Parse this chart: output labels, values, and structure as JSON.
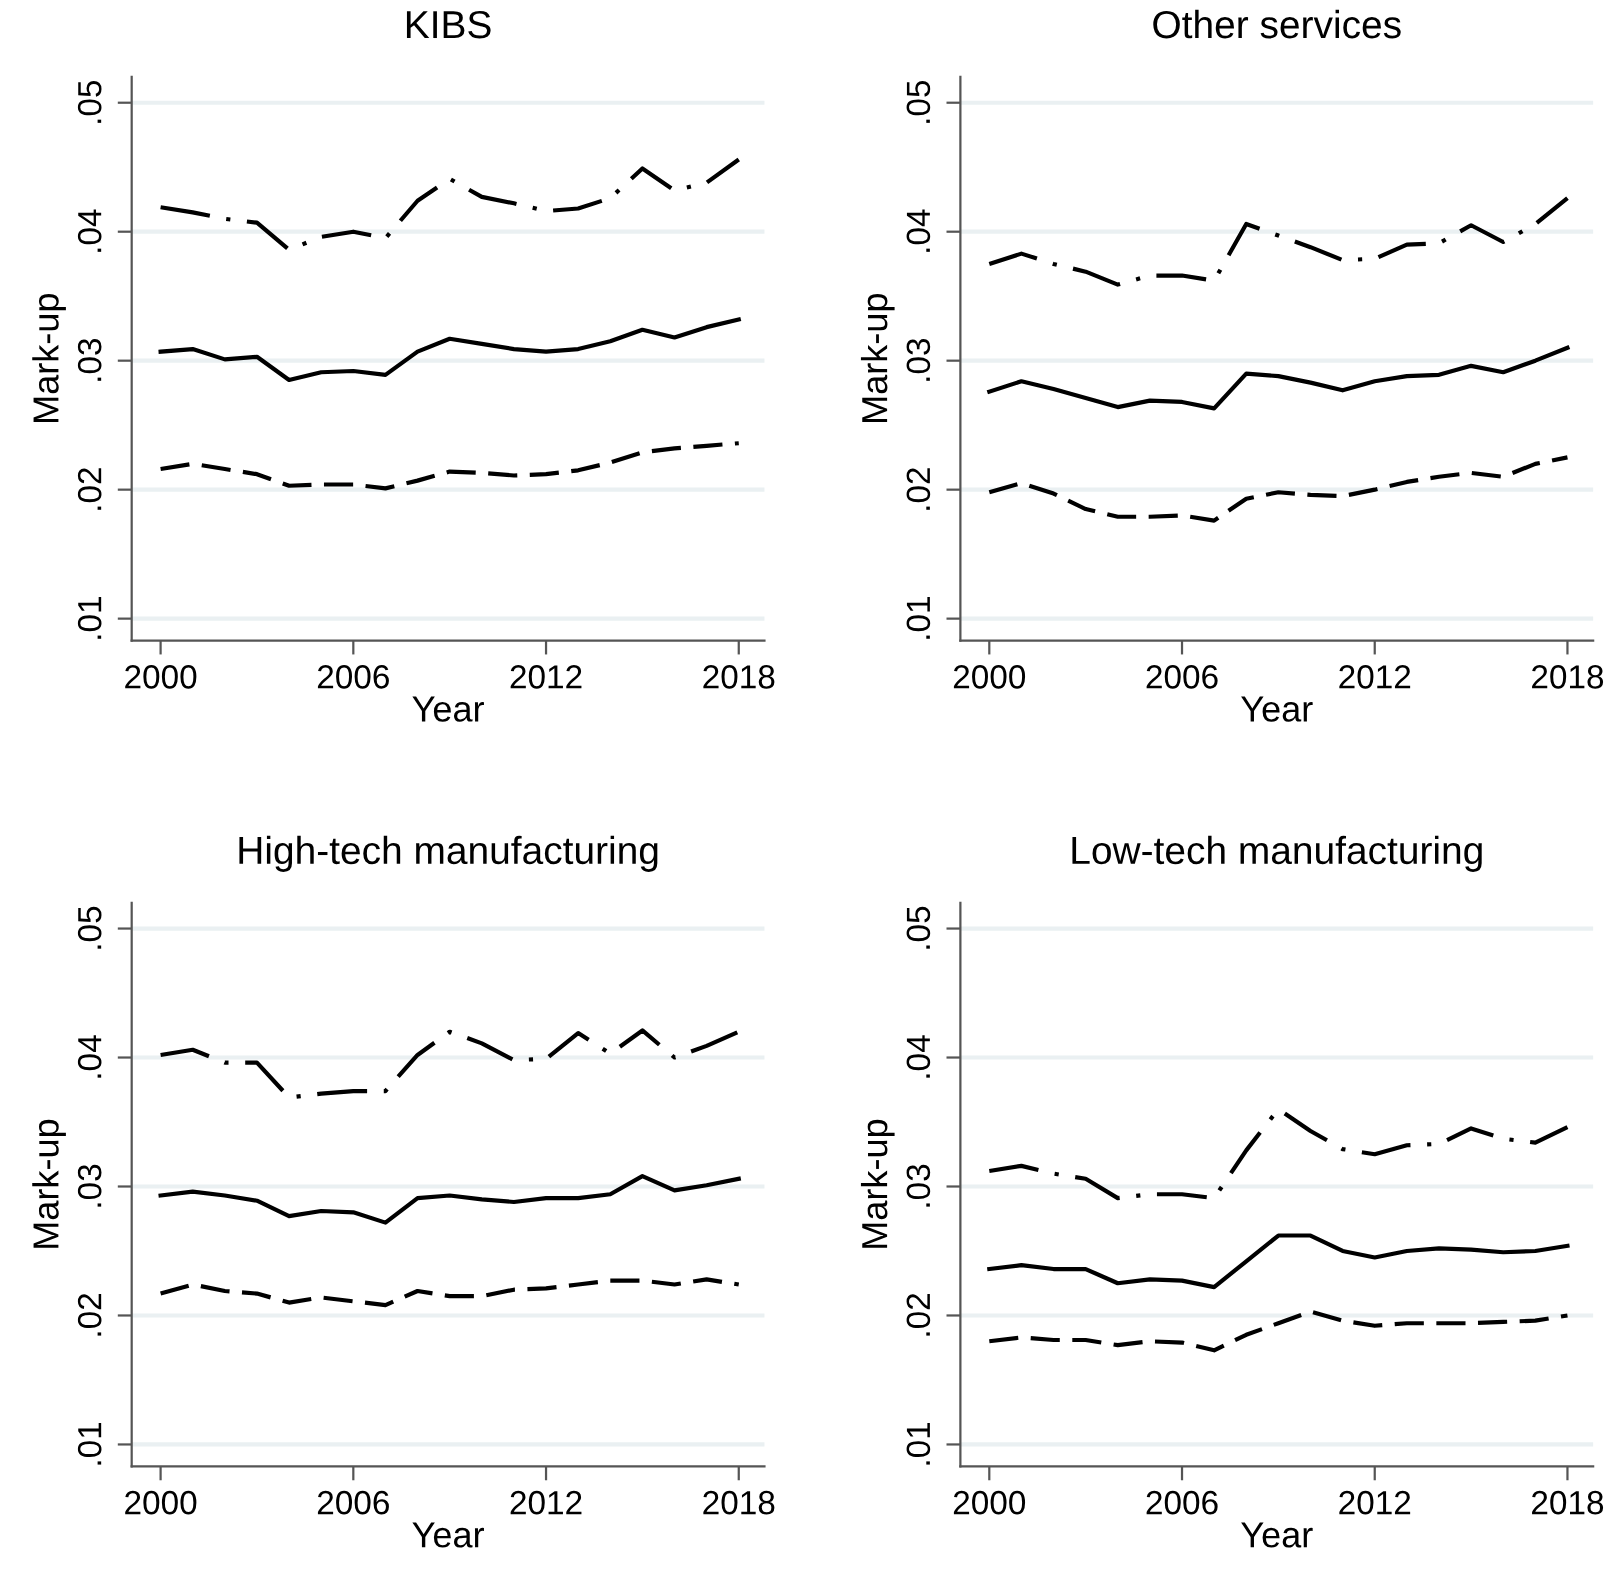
{
  "chart_data": [
    {
      "type": "line",
      "title": "KIBS",
      "xlabel": "Year",
      "ylabel": "Mark-up",
      "x": [
        2000,
        2001,
        2002,
        2003,
        2004,
        2005,
        2006,
        2007,
        2008,
        2009,
        2010,
        2011,
        2012,
        2013,
        2014,
        2015,
        2016,
        2017,
        2018
      ],
      "xlim": [
        1999.1,
        2018.8
      ],
      "xticks": [
        2000,
        2006,
        2012,
        2018
      ],
      "ylim": [
        0.0083,
        0.052
      ],
      "yticks": [
        {
          "value": 0.01,
          "label": ".01"
        },
        {
          "value": 0.02,
          "label": ".02"
        },
        {
          "value": 0.03,
          "label": ".03"
        },
        {
          "value": 0.04,
          "label": ".04"
        },
        {
          "value": 0.05,
          "label": ".05"
        }
      ],
      "grid": "y",
      "marker": "none",
      "series": [
        {
          "color": "#000000",
          "line_style": "dashdot",
          "values": [
            0.0419,
            0.0415,
            0.041,
            0.0407,
            0.0386,
            0.0396,
            0.04,
            0.0395,
            0.0424,
            0.0441,
            0.0427,
            0.0422,
            0.0416,
            0.0418,
            0.0426,
            0.0449,
            0.0432,
            0.0438,
            0.0456
          ]
        },
        {
          "color": "#000000",
          "line_style": "solid",
          "values": [
            0.0307,
            0.0309,
            0.0301,
            0.0303,
            0.0285,
            0.0291,
            0.0292,
            0.0289,
            0.0307,
            0.0317,
            0.0313,
            0.0309,
            0.0307,
            0.0309,
            0.0315,
            0.0324,
            0.0318,
            0.0326,
            0.0332
          ]
        },
        {
          "color": "#000000",
          "line_style": "dashed",
          "values": [
            0.0216,
            0.022,
            0.0216,
            0.0212,
            0.0203,
            0.0204,
            0.0204,
            0.0201,
            0.0207,
            0.0214,
            0.0213,
            0.0211,
            0.0212,
            0.0215,
            0.0221,
            0.0229,
            0.0232,
            0.0234,
            0.0236
          ]
        }
      ]
    },
    {
      "type": "line",
      "title": "Other services",
      "xlabel": "Year",
      "ylabel": "Mark-up",
      "x": [
        2000,
        2001,
        2002,
        2003,
        2004,
        2005,
        2006,
        2007,
        2008,
        2009,
        2010,
        2011,
        2012,
        2013,
        2014,
        2015,
        2016,
        2017,
        2018
      ],
      "xlim": [
        1999.1,
        2018.8
      ],
      "xticks": [
        2000,
        2006,
        2012,
        2018
      ],
      "ylim": [
        0.0083,
        0.052
      ],
      "yticks": [
        {
          "value": 0.01,
          "label": ".01"
        },
        {
          "value": 0.02,
          "label": ".02"
        },
        {
          "value": 0.03,
          "label": ".03"
        },
        {
          "value": 0.04,
          "label": ".04"
        },
        {
          "value": 0.05,
          "label": ".05"
        }
      ],
      "grid": "y",
      "marker": "none",
      "series": [
        {
          "color": "#000000",
          "line_style": "dashdot",
          "values": [
            0.0375,
            0.0383,
            0.0375,
            0.0369,
            0.0359,
            0.0366,
            0.0366,
            0.0362,
            0.0406,
            0.0397,
            0.0388,
            0.0378,
            0.0379,
            0.039,
            0.0391,
            0.0405,
            0.0392,
            0.0406,
            0.0426
          ]
        },
        {
          "color": "#000000",
          "line_style": "solid",
          "values": [
            0.0276,
            0.0284,
            0.0278,
            0.0271,
            0.0264,
            0.0269,
            0.0268,
            0.0263,
            0.029,
            0.0288,
            0.0283,
            0.0277,
            0.0284,
            0.0288,
            0.0289,
            0.0296,
            0.0291,
            0.03,
            0.031
          ]
        },
        {
          "color": "#000000",
          "line_style": "dashed",
          "values": [
            0.0198,
            0.0205,
            0.0197,
            0.0185,
            0.0179,
            0.0179,
            0.018,
            0.0176,
            0.0193,
            0.0198,
            0.0196,
            0.0195,
            0.02,
            0.0206,
            0.021,
            0.0213,
            0.021,
            0.022,
            0.0225
          ]
        }
      ]
    },
    {
      "type": "line",
      "title": "High-tech manufacturing",
      "xlabel": "Year",
      "ylabel": "Mark-up",
      "x": [
        2000,
        2001,
        2002,
        2003,
        2004,
        2005,
        2006,
        2007,
        2008,
        2009,
        2010,
        2011,
        2012,
        2013,
        2014,
        2015,
        2016,
        2017,
        2018
      ],
      "xlim": [
        1999.1,
        2018.8
      ],
      "xticks": [
        2000,
        2006,
        2012,
        2018
      ],
      "ylim": [
        0.0083,
        0.052
      ],
      "yticks": [
        {
          "value": 0.01,
          "label": ".01"
        },
        {
          "value": 0.02,
          "label": ".02"
        },
        {
          "value": 0.03,
          "label": ".03"
        },
        {
          "value": 0.04,
          "label": ".04"
        },
        {
          "value": 0.05,
          "label": ".05"
        }
      ],
      "grid": "y",
      "marker": "none",
      "series": [
        {
          "color": "#000000",
          "line_style": "dashdot",
          "values": [
            0.0402,
            0.0406,
            0.0396,
            0.0396,
            0.0369,
            0.0372,
            0.0374,
            0.0374,
            0.0402,
            0.042,
            0.0411,
            0.0398,
            0.0399,
            0.0419,
            0.0403,
            0.0421,
            0.04,
            0.0409,
            0.042
          ]
        },
        {
          "color": "#000000",
          "line_style": "solid",
          "values": [
            0.0293,
            0.0296,
            0.0293,
            0.0289,
            0.0277,
            0.0281,
            0.028,
            0.0272,
            0.0291,
            0.0293,
            0.029,
            0.0288,
            0.0291,
            0.0291,
            0.0294,
            0.0308,
            0.0297,
            0.0301,
            0.0306
          ]
        },
        {
          "color": "#000000",
          "line_style": "dashed",
          "values": [
            0.0217,
            0.0224,
            0.0219,
            0.0217,
            0.021,
            0.0214,
            0.0211,
            0.0208,
            0.0219,
            0.0215,
            0.0215,
            0.022,
            0.0221,
            0.0224,
            0.0227,
            0.0227,
            0.0224,
            0.0228,
            0.0224
          ]
        }
      ]
    },
    {
      "type": "line",
      "title": "Low-tech manufacturing",
      "xlabel": "Year",
      "ylabel": "Mark-up",
      "x": [
        2000,
        2001,
        2002,
        2003,
        2004,
        2005,
        2006,
        2007,
        2008,
        2009,
        2010,
        2011,
        2012,
        2013,
        2014,
        2015,
        2016,
        2017,
        2018
      ],
      "xlim": [
        1999.1,
        2018.8
      ],
      "xticks": [
        2000,
        2006,
        2012,
        2018
      ],
      "ylim": [
        0.0083,
        0.052
      ],
      "yticks": [
        {
          "value": 0.01,
          "label": ".01"
        },
        {
          "value": 0.02,
          "label": ".02"
        },
        {
          "value": 0.03,
          "label": ".03"
        },
        {
          "value": 0.04,
          "label": ".04"
        },
        {
          "value": 0.05,
          "label": ".05"
        }
      ],
      "grid": "y",
      "marker": "none",
      "series": [
        {
          "color": "#000000",
          "line_style": "dashdot",
          "values": [
            0.0312,
            0.0316,
            0.031,
            0.0306,
            0.0291,
            0.0294,
            0.0294,
            0.0291,
            0.0328,
            0.036,
            0.0343,
            0.0329,
            0.0325,
            0.0332,
            0.0333,
            0.0345,
            0.0337,
            0.0334,
            0.0346
          ]
        },
        {
          "color": "#000000",
          "line_style": "solid",
          "values": [
            0.0236,
            0.0239,
            0.0236,
            0.0236,
            0.0225,
            0.0228,
            0.0227,
            0.0222,
            0.0242,
            0.0262,
            0.0262,
            0.025,
            0.0245,
            0.025,
            0.0252,
            0.0251,
            0.0249,
            0.025,
            0.0254
          ]
        },
        {
          "color": "#000000",
          "line_style": "dashed",
          "values": [
            0.018,
            0.0183,
            0.0181,
            0.0181,
            0.0177,
            0.018,
            0.0179,
            0.0173,
            0.0185,
            0.0194,
            0.0203,
            0.0196,
            0.0192,
            0.0194,
            0.0194,
            0.0194,
            0.0195,
            0.0196,
            0.02
          ]
        }
      ]
    }
  ]
}
